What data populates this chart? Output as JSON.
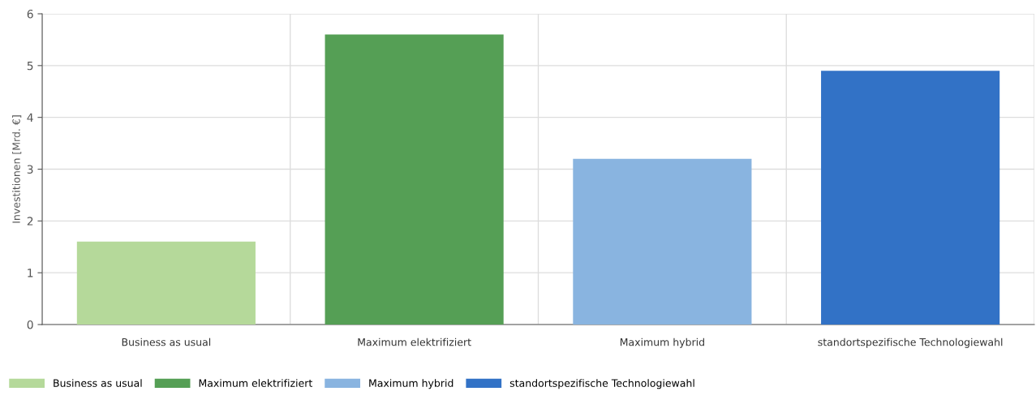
{
  "chart_data": {
    "type": "bar",
    "ylabel": "Investitionen [Mrd. €]",
    "categories": [
      "Business as usual",
      "Maximum elektrifiziert",
      "Maximum hybrid",
      "standortspezifische Technologiewahl"
    ],
    "series": [
      {
        "name": "Business as usual",
        "color": "#b5d99a",
        "values": [
          1.6,
          null,
          null,
          null
        ]
      },
      {
        "name": "Maximum elektrifiziert",
        "color": "#559f55",
        "values": [
          null,
          5.6,
          null,
          null
        ]
      },
      {
        "name": "Maximum hybrid",
        "color": "#89b4e0",
        "values": [
          null,
          null,
          3.2,
          null
        ]
      },
      {
        "name": "standortspezifische Technologiewahl",
        "color": "#3272c6",
        "values": [
          null,
          null,
          null,
          4.9
        ]
      }
    ],
    "ylim": [
      0,
      6
    ],
    "yticks": [
      0,
      1,
      2,
      3,
      4,
      5,
      6
    ],
    "grid": true,
    "legend": "bottom left"
  }
}
